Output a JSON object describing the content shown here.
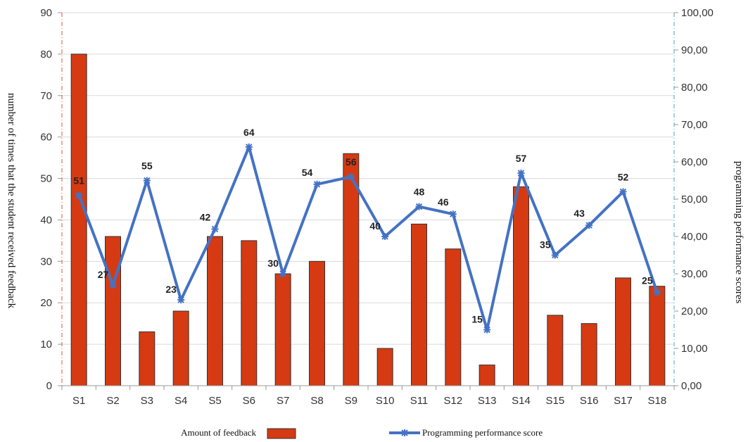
{
  "chart_data": {
    "type": "bar+line",
    "categories": [
      "S1",
      "S2",
      "S3",
      "S4",
      "S5",
      "S6",
      "S7",
      "S8",
      "S9",
      "S10",
      "S11",
      "S12",
      "S13",
      "S14",
      "S15",
      "S16",
      "S17",
      "S18"
    ],
    "series": [
      {
        "name": "Amount of feedback",
        "type": "bar",
        "axis": "left",
        "color": "#d53a12",
        "values": [
          80,
          36,
          13,
          18,
          36,
          35,
          27,
          30,
          56,
          9,
          39,
          33,
          5,
          48,
          17,
          15,
          26,
          24
        ]
      },
      {
        "name": "Programming performance score",
        "type": "line",
        "axis": "right",
        "color": "#4472c4",
        "values": [
          51,
          27,
          55,
          23,
          42,
          64,
          30,
          54,
          56,
          40,
          48,
          46,
          15,
          57,
          35,
          43,
          52,
          25
        ],
        "data_labels": [
          "51",
          "27",
          "55",
          "23",
          "42",
          "64",
          "30",
          "54",
          "56",
          "40",
          "48",
          "46",
          "15",
          "57",
          "35",
          "43",
          "52",
          "25"
        ]
      }
    ],
    "ylabel_left": "number of times that the student received feedback",
    "ylabel_right": "programming performance scores",
    "ylim_left": [
      0,
      90
    ],
    "ylim_right": [
      0,
      100
    ],
    "yticks_left": [
      "0",
      "10",
      "20",
      "30",
      "40",
      "50",
      "60",
      "70",
      "80",
      "90"
    ],
    "yticks_right": [
      "0,00",
      "10,00",
      "20,00",
      "30,00",
      "40,00",
      "50,00",
      "60,00",
      "70,00",
      "80,00",
      "90,00",
      "100,00"
    ],
    "grid": "horizontal",
    "legend_position": "bottom"
  }
}
